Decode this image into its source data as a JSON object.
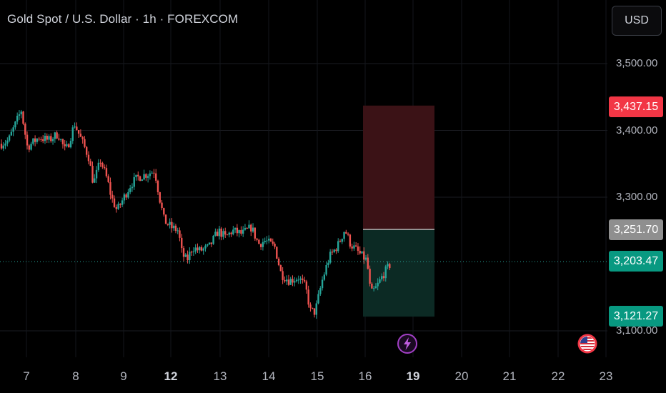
{
  "header": {
    "title": "Gold Spot / U.S. Dollar · 1h · FOREXCOM",
    "currency": "USD"
  },
  "colors": {
    "background": "#000000",
    "up": "#26a69a",
    "down": "#ef5350",
    "stop_zone": "#3b1216",
    "target_zone": "#0c2a24",
    "entry_line": "#b0b0b0",
    "current_price_line": "#26a69a"
  },
  "price_labels": {
    "stop": {
      "text": "3,437.15",
      "value": 3437.15,
      "color": "#f23645"
    },
    "entry": {
      "text": "3,251.70",
      "value": 3251.7,
      "color": "#8f8f8f"
    },
    "current": {
      "text": "3,203.47",
      "value": 3203.47,
      "color": "#089981"
    },
    "target": {
      "text": "3,121.27",
      "value": 3121.27,
      "color": "#089981"
    }
  },
  "icons": {
    "flash": "lightning-event-icon",
    "flag": "us-flag-event-icon"
  },
  "chart_data": {
    "type": "candlestick",
    "symbol": "Gold Spot / U.S. Dollar",
    "interval": "1h",
    "source": "FOREXCOM",
    "y_axis": {
      "range": [
        3070,
        3560
      ],
      "ticks": [
        {
          "value": 3100,
          "label": "3,100.00"
        },
        {
          "value": 3300,
          "label": "3,300.00"
        },
        {
          "value": 3400,
          "label": "3,400.00"
        },
        {
          "value": 3500,
          "label": "3,500.00"
        }
      ]
    },
    "x_axis": {
      "ticks": [
        {
          "label": "7",
          "bold": false
        },
        {
          "label": "8",
          "bold": false
        },
        {
          "label": "9",
          "bold": false
        },
        {
          "label": "12",
          "bold": true
        },
        {
          "label": "13",
          "bold": false
        },
        {
          "label": "14",
          "bold": false
        },
        {
          "label": "15",
          "bold": false
        },
        {
          "label": "16",
          "bold": false
        },
        {
          "label": "19",
          "bold": true
        },
        {
          "label": "20",
          "bold": false
        },
        {
          "label": "21",
          "bold": false
        },
        {
          "label": "22",
          "bold": false
        },
        {
          "label": "23",
          "bold": false
        }
      ]
    },
    "grid": true,
    "price_path": [
      [
        0,
        3380
      ],
      [
        1.5,
        3385
      ],
      [
        3,
        3410
      ],
      [
        4.2,
        3430
      ],
      [
        5.5,
        3375
      ],
      [
        8,
        3390
      ],
      [
        10,
        3385
      ],
      [
        12,
        3395
      ],
      [
        13.5,
        3370
      ],
      [
        14,
        3375
      ],
      [
        15.5,
        3410
      ],
      [
        17,
        3385
      ],
      [
        18.5,
        3360
      ],
      [
        19.5,
        3320
      ],
      [
        21,
        3355
      ],
      [
        22.5,
        3325
      ],
      [
        23.3,
        3300
      ],
      [
        24.5,
        3280
      ],
      [
        26,
        3300
      ],
      [
        27.5,
        3320
      ],
      [
        29,
        3330
      ],
      [
        31,
        3335
      ],
      [
        32.5,
        3340
      ],
      [
        33.5,
        3300
      ],
      [
        34.5,
        3265
      ],
      [
        36,
        3255
      ],
      [
        37.5,
        3250
      ],
      [
        38.3,
        3215
      ],
      [
        39.3,
        3205
      ],
      [
        40.5,
        3225
      ],
      [
        42,
        3220
      ],
      [
        44,
        3225
      ],
      [
        46,
        3250
      ],
      [
        47.5,
        3240
      ],
      [
        49,
        3250
      ],
      [
        51,
        3245
      ],
      [
        53,
        3255
      ],
      [
        54.5,
        3230
      ],
      [
        56,
        3235
      ],
      [
        58,
        3225
      ],
      [
        59.3,
        3185
      ],
      [
        61,
        3175
      ],
      [
        63,
        3180
      ],
      [
        64.5,
        3165
      ],
      [
        65.5,
        3130
      ],
      [
        66.5,
        3128
      ],
      [
        68,
        3175
      ],
      [
        69.5,
        3210
      ],
      [
        71.5,
        3230
      ],
      [
        72.8,
        3252
      ],
      [
        74,
        3230
      ],
      [
        76,
        3215
      ],
      [
        77.5,
        3205
      ],
      [
        78.3,
        3155
      ],
      [
        79.5,
        3165
      ],
      [
        81,
        3185
      ],
      [
        82.5,
        3200
      ]
    ],
    "position_tool": {
      "type": "short",
      "entry": 3251.7,
      "stop": 3437.15,
      "target": 3121.27,
      "current": 3203.47
    }
  }
}
